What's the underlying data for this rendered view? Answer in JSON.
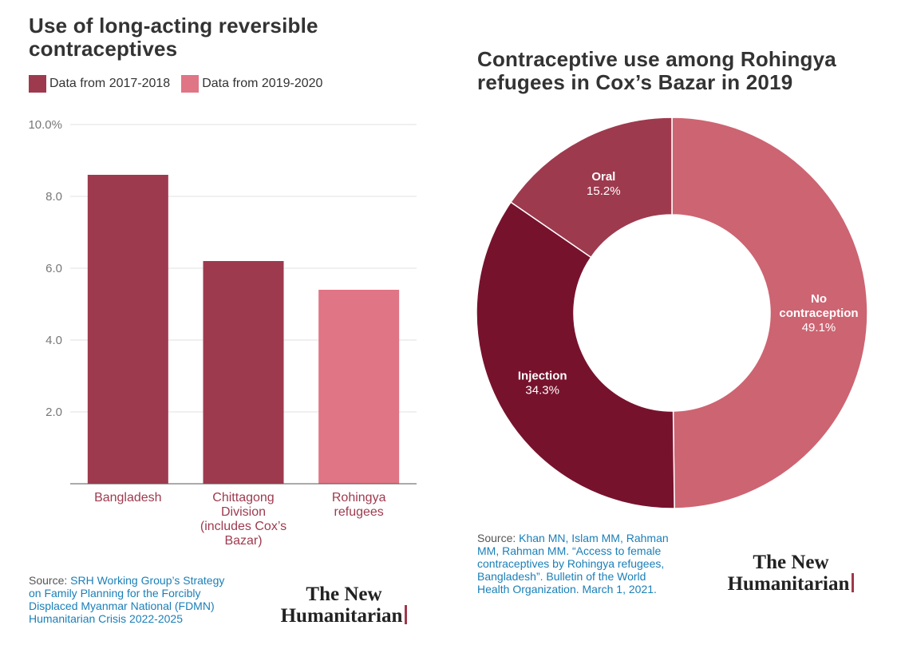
{
  "left_chart": {
    "title_line1": "Use of long-acting reversible",
    "title_line2": "contraceptives",
    "legend": [
      {
        "label": "Data from 2017-2018",
        "color": "#9e3a4e"
      },
      {
        "label": "Data from 2019-2020",
        "color": "#e07585"
      }
    ],
    "source_prefix": "Source: ",
    "source_lines": [
      "SRH Working Group’s Strategy",
      "on Family Planning for the Forcibly",
      "Displaced Myanmar National (FDMN)",
      "Humanitarian Crisis 2022-2025"
    ]
  },
  "right_chart": {
    "title_line1": "Contraceptive use among Rohingya",
    "title_line2": "refugees in Cox’s Bazar in 2019",
    "source_prefix": "Source: ",
    "source_lines": [
      "Khan MN, Islam MM, Rahman",
      "MM, Rahman MM. “Access to female",
      "contraceptives by Rohingya refugees,",
      "Bangladesh”. Bulletin of the World",
      "Health Organization. March 1, 2021."
    ]
  },
  "logo": {
    "line1": "The New",
    "line2": "Humanitarian"
  },
  "chart_data": [
    {
      "type": "bar",
      "title": "Use of long-acting reversible contraceptives",
      "categories": [
        [
          "Bangladesh"
        ],
        [
          "Chittagong",
          "Division",
          "(includes Cox’s",
          "Bazar)"
        ],
        [
          "Rohingya",
          "refugees"
        ]
      ],
      "values": [
        8.6,
        6.2,
        5.4
      ],
      "series_index": [
        0,
        0,
        1
      ],
      "series": [
        {
          "name": "Data from 2017-2018",
          "color": "#9e3a4e"
        },
        {
          "name": "Data from 2019-2020",
          "color": "#e07585"
        }
      ],
      "ylim": [
        0,
        10
      ],
      "yticks": [
        {
          "value": 2,
          "label": "2.0"
        },
        {
          "value": 4,
          "label": "4.0"
        },
        {
          "value": 6,
          "label": "6.0"
        },
        {
          "value": 8,
          "label": "8.0"
        },
        {
          "value": 10,
          "label": "10.0%"
        }
      ],
      "grid": true,
      "legend_position": "top-left"
    },
    {
      "type": "pie",
      "title": "Contraceptive use among Rohingya refugees in Cox’s Bazar in 2019",
      "donut": true,
      "slices": [
        {
          "label": [
            "No",
            "contraception"
          ],
          "value": 49.1,
          "value_label": "49.1%",
          "color": "#cd6472"
        },
        {
          "label": [
            "Injection"
          ],
          "value": 34.3,
          "value_label": "34.3%",
          "color": "#77122d"
        },
        {
          "label": [
            "Oral"
          ],
          "value": 15.2,
          "value_label": "15.2%",
          "color": "#9e3a4e"
        }
      ]
    }
  ]
}
